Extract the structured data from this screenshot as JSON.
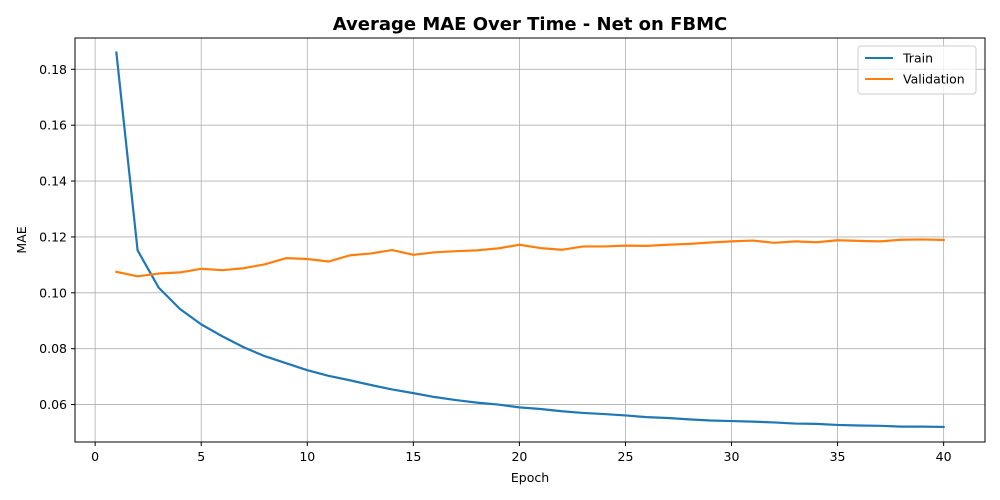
{
  "chart_data": {
    "type": "line",
    "title": "Average MAE Over Time - Net on FBMC",
    "xlabel": "Epoch",
    "ylabel": "MAE",
    "xlim": [
      -0.95,
      41.95
    ],
    "ylim": [
      0.0466,
      0.1912
    ],
    "xticks": [
      0,
      5,
      10,
      15,
      20,
      25,
      30,
      35,
      40
    ],
    "yticks": [
      0.06,
      0.08,
      0.1,
      0.12,
      0.14,
      0.16,
      0.18
    ],
    "xtick_labels": [
      "0",
      "5",
      "10",
      "15",
      "20",
      "25",
      "30",
      "35",
      "40"
    ],
    "ytick_labels": [
      "0.06",
      "0.08",
      "0.10",
      "0.12",
      "0.14",
      "0.16",
      "0.18"
    ],
    "grid": true,
    "legend_position": "top-right",
    "x": [
      1,
      2,
      3,
      4,
      5,
      6,
      7,
      8,
      9,
      10,
      11,
      12,
      13,
      14,
      15,
      16,
      17,
      18,
      19,
      20,
      21,
      22,
      23,
      24,
      25,
      26,
      27,
      28,
      29,
      30,
      31,
      32,
      33,
      34,
      35,
      36,
      37,
      38,
      39,
      40
    ],
    "series": [
      {
        "name": "Train",
        "color": "#1f77b4",
        "values": [
          0.186,
          0.1152,
          0.1018,
          0.0942,
          0.0887,
          0.0844,
          0.0805,
          0.0773,
          0.0748,
          0.0723,
          0.0703,
          0.0687,
          0.067,
          0.0654,
          0.0641,
          0.0627,
          0.0616,
          0.0607,
          0.06,
          0.059,
          0.0584,
          0.0576,
          0.057,
          0.0566,
          0.0561,
          0.0555,
          0.0552,
          0.0547,
          0.0543,
          0.0541,
          0.0539,
          0.0536,
          0.0532,
          0.0531,
          0.0527,
          0.0525,
          0.0524,
          0.0521,
          0.0521,
          0.052
        ]
      },
      {
        "name": "Validation",
        "color": "#ff7f0e",
        "values": [
          0.1075,
          0.1059,
          0.1069,
          0.1073,
          0.1086,
          0.1081,
          0.1088,
          0.1102,
          0.1124,
          0.1121,
          0.1112,
          0.1134,
          0.1141,
          0.1153,
          0.1136,
          0.1145,
          0.1149,
          0.1152,
          0.1159,
          0.1172,
          0.116,
          0.1154,
          0.1166,
          0.1166,
          0.1169,
          0.1168,
          0.1172,
          0.1175,
          0.118,
          0.1184,
          0.1187,
          0.1179,
          0.1184,
          0.1181,
          0.1188,
          0.1186,
          0.1184,
          0.119,
          0.1191,
          0.1189
        ]
      }
    ]
  }
}
